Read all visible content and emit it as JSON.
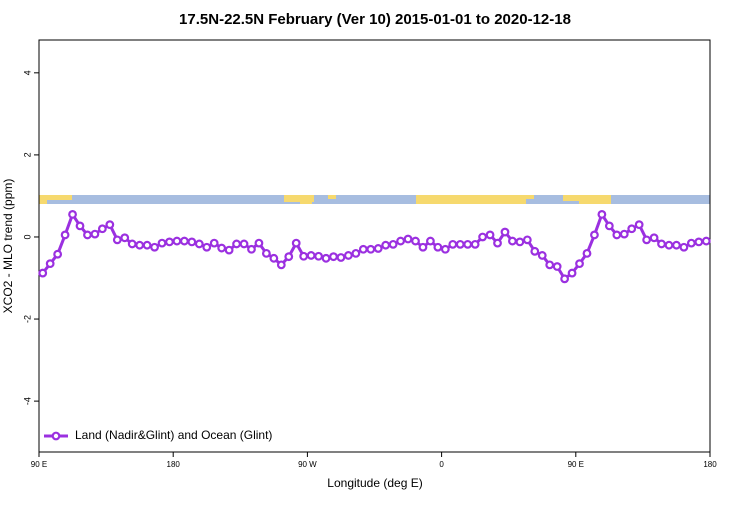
{
  "chart_data": {
    "type": "line",
    "title": "17.5N-22.5N February (Ver 10)   2015-01-01 to 2020-12-18",
    "x_label": "Longitude (deg E)",
    "y_label": "XCO2 - MLO trend (ppm)",
    "x": [
      92.5,
      97.5,
      102.5,
      107.5,
      112.5,
      117.5,
      122.5,
      127.5,
      132.5,
      137.5,
      142.5,
      147.5,
      152.5,
      157.5,
      162.5,
      167.5,
      172.5,
      177.5,
      182.5,
      187.5,
      192.5,
      197.5,
      202.5,
      207.5,
      212.5,
      217.5,
      222.5,
      227.5,
      232.5,
      237.5,
      242.5,
      247.5,
      252.5,
      257.5,
      262.5,
      267.5,
      272.5,
      277.5,
      282.5,
      287.5,
      292.5,
      297.5,
      302.5,
      307.5,
      312.5,
      317.5,
      322.5,
      327.5,
      332.5,
      337.5,
      342.5,
      347.5,
      352.5,
      357.5,
      362.5,
      367.5,
      372.5,
      377.5,
      382.5,
      387.5,
      392.5,
      397.5,
      402.5,
      407.5,
      412.5,
      417.5,
      422.5,
      427.5,
      432.5,
      437.5,
      442.5,
      447.5,
      452.5,
      457.5,
      462.5,
      467.5,
      472.5,
      477.5,
      482.5,
      487.5,
      492.5,
      497.5,
      502.5,
      507.5,
      512.5,
      517.5,
      522.5,
      527.5,
      532.5,
      537.5
    ],
    "series": [
      {
        "name": "Land (Nadir&Glint) and Ocean (Glint)",
        "color": "#9b30e0",
        "values": [
          -0.88,
          -0.65,
          -0.42,
          0.05,
          0.55,
          0.27,
          0.05,
          0.07,
          0.2,
          0.3,
          -0.07,
          -0.02,
          -0.17,
          -0.2,
          -0.2,
          -0.25,
          -0.15,
          -0.12,
          -0.1,
          -0.1,
          -0.12,
          -0.17,
          -0.25,
          -0.15,
          -0.27,
          -0.32,
          -0.17,
          -0.17,
          -0.3,
          -0.15,
          -0.4,
          -0.52,
          -0.68,
          -0.48,
          -0.15,
          -0.47,
          -0.45,
          -0.47,
          -0.52,
          -0.48,
          -0.5,
          -0.45,
          -0.4,
          -0.3,
          -0.3,
          -0.28,
          -0.2,
          -0.18,
          -0.1,
          -0.05,
          -0.1,
          -0.25,
          -0.1,
          -0.25,
          -0.3,
          -0.18,
          -0.18,
          -0.18,
          -0.18,
          0.0,
          0.05,
          -0.15,
          0.12,
          -0.1,
          -0.12,
          -0.07,
          -0.35,
          -0.45,
          -0.68,
          -0.72,
          -1.02,
          -0.88,
          -0.65,
          -0.4,
          0.05,
          0.55,
          0.27,
          0.05,
          0.07,
          0.2,
          0.3,
          -0.07,
          -0.02,
          -0.17,
          -0.2,
          -0.2,
          -0.25,
          -0.15,
          -0.12,
          -0.1
        ]
      }
    ],
    "xlim": [
      90,
      540
    ],
    "xticks": [
      {
        "value": 90,
        "label": "90 E"
      },
      180,
      {
        "value": 270,
        "label": "90 W"
      },
      {
        "value": 360,
        "label": "0"
      },
      {
        "value": 450,
        "label": "90 E"
      },
      {
        "value": 540,
        "label": "180"
      }
    ],
    "ylim": [
      -5.24,
      4.8
    ],
    "yticks": [
      4,
      2,
      0,
      -2,
      -4
    ],
    "legend": "bottom-left"
  }
}
